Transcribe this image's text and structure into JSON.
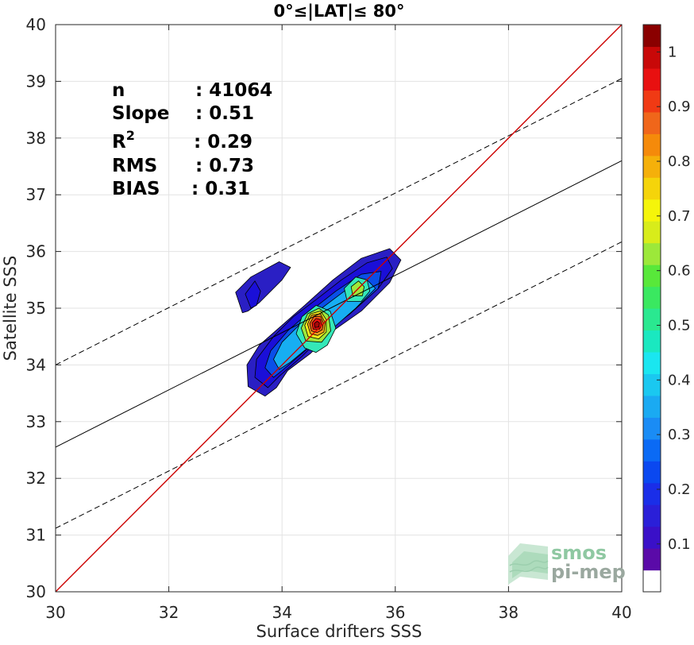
{
  "chart_data": {
    "type": "contour",
    "title": "0°≤|LAT|≤ 80°",
    "xlabel": "Surface drifters SSS",
    "ylabel": "Satellite SSS",
    "xlim": [
      30,
      40
    ],
    "ylim": [
      30,
      40
    ],
    "xticks": [
      "30",
      "32",
      "34",
      "36",
      "38",
      "40"
    ],
    "yticks": [
      "30",
      "31",
      "32",
      "33",
      "34",
      "35",
      "36",
      "37",
      "38",
      "39",
      "40"
    ],
    "grid": true,
    "stats": [
      {
        "label": "n",
        "sep": ": ",
        "value": "41064"
      },
      {
        "label": "Slope",
        "sep": ": ",
        "value": "0.51"
      },
      {
        "label": "R",
        "sup": "2",
        "sep": ": ",
        "value": "0.29"
      },
      {
        "label": "RMS",
        "sep": ": ",
        "value": "0.73"
      },
      {
        "label": "BIAS",
        "sep": ": ",
        "value": "0.31"
      }
    ],
    "lines": {
      "one_to_one": {
        "color": "#cc0000",
        "x": [
          30,
          40
        ],
        "y": [
          30,
          40
        ]
      },
      "regression": {
        "color": "#000000",
        "x": [
          30,
          40
        ],
        "y": [
          32.55,
          37.6
        ]
      },
      "upper_bound": {
        "color": "#000000",
        "dashed": true,
        "x": [
          30,
          40
        ],
        "y": [
          34.0,
          39.05
        ]
      },
      "lower_bound": {
        "color": "#000000",
        "dashed": true,
        "x": [
          30,
          40
        ],
        "y": [
          31.12,
          36.17
        ]
      }
    },
    "density_peak": {
      "x": 34.6,
      "y": 34.72,
      "value": 1.0
    },
    "contours": [
      {
        "level": 0.05,
        "color": "#2a1fc4",
        "points": [
          [
            33.7,
            33.45
          ],
          [
            33.4,
            33.62
          ],
          [
            33.38,
            34.0
          ],
          [
            33.6,
            34.35
          ],
          [
            34.0,
            34.7
          ],
          [
            34.4,
            35.05
          ],
          [
            34.9,
            35.5
          ],
          [
            35.4,
            35.88
          ],
          [
            35.9,
            36.05
          ],
          [
            36.1,
            35.85
          ],
          [
            35.9,
            35.45
          ],
          [
            35.4,
            34.95
          ],
          [
            34.9,
            34.6
          ],
          [
            34.5,
            34.2
          ],
          [
            34.1,
            33.9
          ],
          [
            33.9,
            33.6
          ]
        ]
      },
      {
        "level": 0.05,
        "color": "#2a1fc4",
        "points": [
          [
            33.3,
            34.92
          ],
          [
            33.18,
            35.28
          ],
          [
            33.45,
            35.55
          ],
          [
            33.95,
            35.82
          ],
          [
            34.15,
            35.72
          ],
          [
            34.0,
            35.5
          ],
          [
            33.6,
            35.1
          ],
          [
            33.4,
            34.95
          ]
        ]
      },
      {
        "level": 0.1,
        "color": "#1a0fd8",
        "points": [
          [
            33.75,
            33.6
          ],
          [
            33.52,
            33.78
          ],
          [
            33.55,
            34.1
          ],
          [
            33.85,
            34.5
          ],
          [
            34.2,
            34.85
          ],
          [
            34.6,
            35.15
          ],
          [
            35.05,
            35.5
          ],
          [
            35.5,
            35.8
          ],
          [
            35.85,
            35.9
          ],
          [
            35.95,
            35.7
          ],
          [
            35.7,
            35.35
          ],
          [
            35.2,
            34.9
          ],
          [
            34.75,
            34.55
          ],
          [
            34.35,
            34.15
          ],
          [
            33.95,
            33.8
          ]
        ]
      },
      {
        "level": 0.1,
        "color": "#1a0fd8",
        "points": [
          [
            33.45,
            35.0
          ],
          [
            33.35,
            35.25
          ],
          [
            33.52,
            35.48
          ],
          [
            33.62,
            35.3
          ],
          [
            33.55,
            35.05
          ]
        ]
      },
      {
        "level": 0.2,
        "color": "#0a4fe8",
        "points": [
          [
            33.85,
            33.78
          ],
          [
            33.7,
            33.95
          ],
          [
            33.8,
            34.25
          ],
          [
            34.1,
            34.6
          ],
          [
            34.5,
            34.95
          ],
          [
            34.95,
            35.3
          ],
          [
            35.4,
            35.6
          ],
          [
            35.75,
            35.65
          ],
          [
            35.7,
            35.35
          ],
          [
            35.25,
            34.95
          ],
          [
            34.8,
            34.6
          ],
          [
            34.35,
            34.2
          ],
          [
            34.0,
            33.9
          ]
        ]
      },
      {
        "level": 0.3,
        "color": "#17aef2",
        "points": [
          [
            33.95,
            33.92
          ],
          [
            33.85,
            34.1
          ],
          [
            34.0,
            34.4
          ],
          [
            34.3,
            34.7
          ],
          [
            34.7,
            35.0
          ],
          [
            35.1,
            35.3
          ],
          [
            35.5,
            35.5
          ],
          [
            35.65,
            35.35
          ],
          [
            35.3,
            35.0
          ],
          [
            34.9,
            34.65
          ],
          [
            34.45,
            34.3
          ],
          [
            34.15,
            34.05
          ]
        ]
      },
      {
        "level": 0.4,
        "color": "#34e8b8",
        "points": [
          [
            34.4,
            34.3
          ],
          [
            34.25,
            34.55
          ],
          [
            34.35,
            34.85
          ],
          [
            34.6,
            35.05
          ],
          [
            34.85,
            34.95
          ],
          [
            34.95,
            34.65
          ],
          [
            34.8,
            34.35
          ],
          [
            34.6,
            34.22
          ]
        ]
      },
      {
        "level": 0.4,
        "color": "#34e8b8",
        "points": [
          [
            35.15,
            35.12
          ],
          [
            35.1,
            35.35
          ],
          [
            35.3,
            35.55
          ],
          [
            35.5,
            35.5
          ],
          [
            35.55,
            35.3
          ],
          [
            35.4,
            35.12
          ]
        ]
      },
      {
        "level": 0.5,
        "color": "#9ee83a",
        "points": [
          [
            34.42,
            34.42
          ],
          [
            34.34,
            34.65
          ],
          [
            34.45,
            34.9
          ],
          [
            34.65,
            35.0
          ],
          [
            34.82,
            34.88
          ],
          [
            34.86,
            34.6
          ],
          [
            34.7,
            34.4
          ]
        ]
      },
      {
        "level": 0.5,
        "color": "#9ee83a",
        "points": [
          [
            35.25,
            35.22
          ],
          [
            35.22,
            35.38
          ],
          [
            35.35,
            35.48
          ],
          [
            35.45,
            35.38
          ],
          [
            35.42,
            35.22
          ]
        ]
      },
      {
        "level": 0.6,
        "color": "#f5ec1a",
        "points": [
          [
            34.46,
            34.5
          ],
          [
            34.4,
            34.7
          ],
          [
            34.5,
            34.9
          ],
          [
            34.68,
            34.95
          ],
          [
            34.78,
            34.8
          ],
          [
            34.78,
            34.58
          ],
          [
            34.65,
            34.46
          ]
        ]
      },
      {
        "level": 0.7,
        "color": "#f5a21a",
        "points": [
          [
            34.5,
            34.55
          ],
          [
            34.45,
            34.72
          ],
          [
            34.52,
            34.88
          ],
          [
            34.68,
            34.9
          ],
          [
            34.76,
            34.75
          ],
          [
            34.74,
            34.58
          ],
          [
            34.63,
            34.52
          ]
        ]
      },
      {
        "level": 0.8,
        "color": "#f05a14",
        "points": [
          [
            34.52,
            34.6
          ],
          [
            34.49,
            34.73
          ],
          [
            34.56,
            34.85
          ],
          [
            34.68,
            34.86
          ],
          [
            34.73,
            34.74
          ],
          [
            34.71,
            34.62
          ],
          [
            34.62,
            34.57
          ]
        ]
      },
      {
        "level": 0.9,
        "color": "#e81010",
        "points": [
          [
            34.55,
            34.63
          ],
          [
            34.53,
            34.74
          ],
          [
            34.6,
            34.82
          ],
          [
            34.68,
            34.8
          ],
          [
            34.7,
            34.7
          ],
          [
            34.66,
            34.63
          ]
        ]
      },
      {
        "level": 1.0,
        "color": "#a80808",
        "points": [
          [
            34.58,
            34.66
          ],
          [
            34.57,
            34.73
          ],
          [
            34.62,
            34.77
          ],
          [
            34.66,
            34.74
          ],
          [
            34.65,
            34.67
          ]
        ]
      }
    ],
    "colorbar": {
      "range": [
        0.0125,
        1.05
      ],
      "ticks": [
        "0.1",
        "0.2",
        "0.3",
        "0.4",
        "0.5",
        "0.6",
        "0.7",
        "0.8",
        "0.9",
        "1"
      ],
      "tick_values": [
        0.1,
        0.2,
        0.3,
        0.4,
        0.5,
        0.6,
        0.7,
        0.8,
        0.9,
        1.0
      ],
      "colors": [
        "#ffffff",
        "#5a0aa8",
        "#3a10c8",
        "#2a1fd8",
        "#1a2ee8",
        "#0a48f0",
        "#0a6af5",
        "#1a8cf5",
        "#1aaaf2",
        "#1ac8f0",
        "#1ae6f0",
        "#1ae8c0",
        "#2ae890",
        "#3ae860",
        "#58e83a",
        "#9ce83a",
        "#d8ec1a",
        "#f5f50a",
        "#f5d40a",
        "#f5b00a",
        "#f58a0a",
        "#f0661a",
        "#f03a14",
        "#e81010",
        "#c80808",
        "#8a0000"
      ]
    },
    "watermark": {
      "line1": "smos",
      "line2": "pi-mep"
    }
  }
}
